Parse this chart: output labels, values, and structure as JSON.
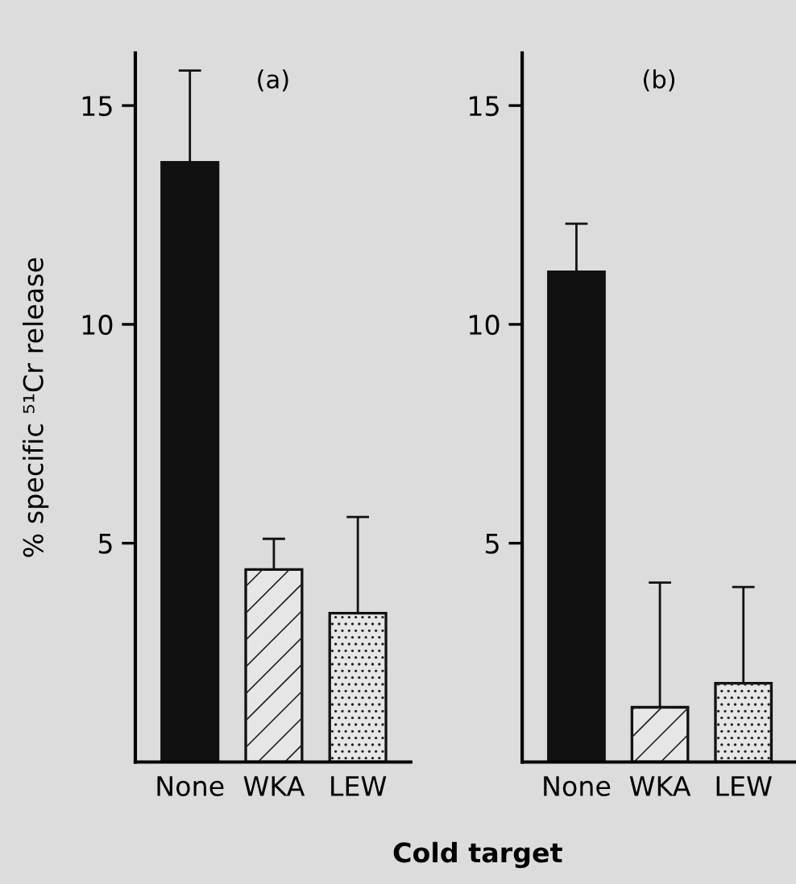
{
  "chart_data": [
    {
      "type": "bar",
      "title": "(a)",
      "ylabel": "% specific ⁵¹Cr release",
      "xlabel": "Cold target",
      "categories": [
        "None",
        "WKA",
        "LEW"
      ],
      "values": [
        13.7,
        4.4,
        3.4
      ],
      "errors": [
        [
          13.7,
          15.8
        ],
        [
          4.4,
          5.1
        ],
        [
          3.4,
          5.6
        ]
      ],
      "colors": [
        "#111111",
        "#e6e6e6",
        "#e6e6e6"
      ],
      "ylim": [
        0,
        16.2
      ],
      "yticks": [
        5,
        10,
        15
      ],
      "grid": false,
      "legend": false
    },
    {
      "type": "bar",
      "title": "(b)",
      "categories": [
        "None",
        "WKA",
        "LEW"
      ],
      "values": [
        11.2,
        1.25,
        1.8
      ],
      "errors": [
        [
          11.2,
          12.3
        ],
        [
          1.25,
          4.1
        ],
        [
          1.8,
          4.0
        ]
      ],
      "colors": [
        "#111111",
        "#e6e6e6",
        "#e6e6e6"
      ],
      "ylim": [
        0,
        16.2
      ],
      "yticks": [
        5,
        10,
        15
      ],
      "grid": false,
      "legend": false
    }
  ]
}
